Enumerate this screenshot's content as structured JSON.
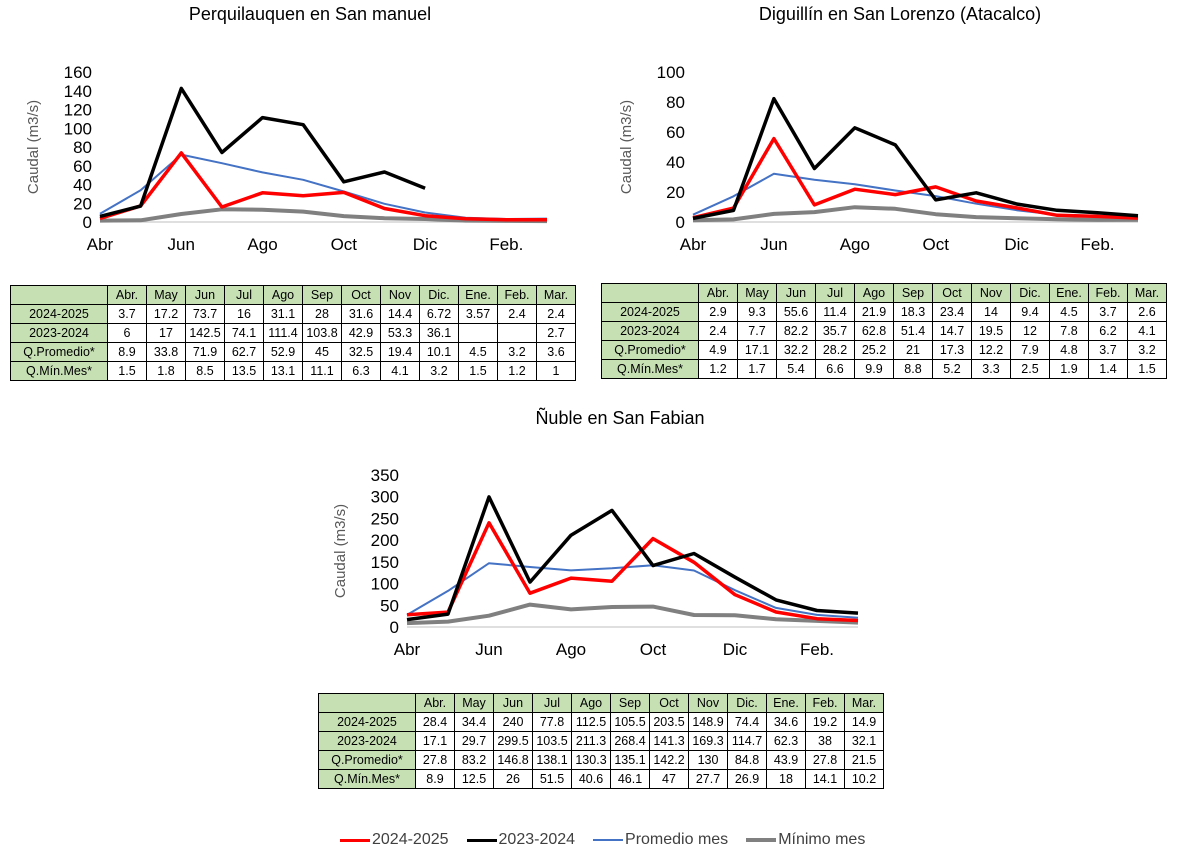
{
  "months_axis": [
    "Abr",
    "Jun",
    "Ago",
    "Oct",
    "Dic",
    "Feb."
  ],
  "table_months": [
    "Abr.",
    "May",
    "Jun",
    "Jul",
    "Ago",
    "Sep",
    "Oct",
    "Nov",
    "Dic.",
    "Ene.",
    "Feb.",
    "Mar."
  ],
  "legend": [
    {
      "label": "2024-2025",
      "color": "#ff0000"
    },
    {
      "label": "2023-2024",
      "color": "#000000"
    },
    {
      "label": "Promedio mes",
      "color": "#4472c4"
    },
    {
      "label": "Mínimo mes",
      "color": "#808080"
    }
  ],
  "chart_data": [
    {
      "type": "line",
      "title": "Perquilauquen en San manuel",
      "ylabel": "Caudal (m3/s)",
      "xlabel": "",
      "ylim": [
        0,
        160
      ],
      "yticks": [
        0,
        20,
        40,
        60,
        80,
        100,
        120,
        140,
        160
      ],
      "categories": [
        "Abr.",
        "May",
        "Jun",
        "Jul",
        "Ago",
        "Sep",
        "Oct",
        "Nov",
        "Dic.",
        "Ene.",
        "Feb.",
        "Mar."
      ],
      "series": [
        {
          "name": "2024-2025",
          "values": [
            3.7,
            17.2,
            73.7,
            16,
            31.1,
            28,
            31.6,
            14.4,
            6.72,
            3.57,
            2.4,
            2.4
          ]
        },
        {
          "name": "2023-2024",
          "values": [
            6,
            17,
            142.5,
            74.1,
            111.4,
            103.8,
            42.9,
            53.3,
            36.1,
            null,
            null,
            2.7
          ]
        },
        {
          "name": "Q.Promedio*",
          "values": [
            8.9,
            33.8,
            71.9,
            62.7,
            52.9,
            45,
            32.5,
            19.4,
            10.1,
            4.5,
            3.2,
            3.6
          ]
        },
        {
          "name": "Q.Mín.Mes*",
          "values": [
            1.5,
            1.8,
            8.5,
            13.5,
            13.1,
            11.1,
            6.3,
            4.1,
            3.2,
            1.5,
            1.2,
            1
          ]
        }
      ],
      "table_rows": [
        {
          "label": "2024-2025",
          "cells": [
            "3.7",
            "17.2",
            "73.7",
            "16",
            "31.1",
            "28",
            "31.6",
            "14.4",
            "6.72",
            "3.57",
            "2.4",
            "2.4"
          ]
        },
        {
          "label": "2023-2024",
          "cells": [
            "6",
            "17",
            "142.5",
            "74.1",
            "111.4",
            "103.8",
            "42.9",
            "53.3",
            "36.1",
            "",
            "",
            "2.7"
          ]
        },
        {
          "label": "Q.Promedio*",
          "cells": [
            "8.9",
            "33.8",
            "71.9",
            "62.7",
            "52.9",
            "45",
            "32.5",
            "19.4",
            "10.1",
            "4.5",
            "3.2",
            "3.6"
          ]
        },
        {
          "label": "Q.Mín.Mes*",
          "cells": [
            "1.5",
            "1.8",
            "8.5",
            "13.5",
            "13.1",
            "11.1",
            "6.3",
            "4.1",
            "3.2",
            "1.5",
            "1.2",
            "1"
          ]
        }
      ]
    },
    {
      "type": "line",
      "title": "Diguillín  en San Lorenzo (Atacalco)",
      "ylabel": "Caudal (m3/s)",
      "xlabel": "",
      "ylim": [
        0,
        100
      ],
      "yticks": [
        0,
        20,
        40,
        60,
        80,
        100
      ],
      "categories": [
        "Abr.",
        "May",
        "Jun",
        "Jul",
        "Ago",
        "Sep",
        "Oct",
        "Nov",
        "Dic.",
        "Ene.",
        "Feb.",
        "Mar."
      ],
      "series": [
        {
          "name": "2024-2025",
          "values": [
            2.9,
            9.3,
            55.6,
            11.4,
            21.9,
            18.3,
            23.4,
            14,
            9.4,
            4.5,
            3.7,
            2.6
          ]
        },
        {
          "name": "2023-2024",
          "values": [
            2.4,
            7.7,
            82.2,
            35.7,
            62.8,
            51.4,
            14.7,
            19.5,
            12,
            7.8,
            6.2,
            4.1
          ]
        },
        {
          "name": "Q.Promedio*",
          "values": [
            4.9,
            17.1,
            32.2,
            28.2,
            25.2,
            21,
            17.3,
            12.2,
            7.9,
            4.8,
            3.7,
            3.2
          ]
        },
        {
          "name": "Q.Mín.Mes*",
          "values": [
            1.2,
            1.7,
            5.4,
            6.6,
            9.9,
            8.8,
            5.2,
            3.3,
            2.5,
            1.9,
            1.4,
            1.5
          ]
        }
      ],
      "table_rows": [
        {
          "label": "2024-2025",
          "cells": [
            "2.9",
            "9.3",
            "55.6",
            "11.4",
            "21.9",
            "18.3",
            "23.4",
            "14",
            "9.4",
            "4.5",
            "3.7",
            "2.6"
          ]
        },
        {
          "label": "2023-2024",
          "cells": [
            "2.4",
            "7.7",
            "82.2",
            "35.7",
            "62.8",
            "51.4",
            "14.7",
            "19.5",
            "12",
            "7.8",
            "6.2",
            "4.1"
          ]
        },
        {
          "label": "Q.Promedio*",
          "cells": [
            "4.9",
            "17.1",
            "32.2",
            "28.2",
            "25.2",
            "21",
            "17.3",
            "12.2",
            "7.9",
            "4.8",
            "3.7",
            "3.2"
          ]
        },
        {
          "label": "Q.Mín.Mes*",
          "cells": [
            "1.2",
            "1.7",
            "5.4",
            "6.6",
            "9.9",
            "8.8",
            "5.2",
            "3.3",
            "2.5",
            "1.9",
            "1.4",
            "1.5"
          ]
        }
      ]
    },
    {
      "type": "line",
      "title": "Ñuble en San Fabian",
      "ylabel": "Caudal (m3/s)",
      "xlabel": "",
      "ylim": [
        0,
        350
      ],
      "yticks": [
        0,
        50,
        100,
        150,
        200,
        250,
        300,
        350
      ],
      "categories": [
        "Abr.",
        "May",
        "Jun",
        "Jul",
        "Ago",
        "Sep",
        "Oct",
        "Nov",
        "Dic.",
        "Ene.",
        "Feb.",
        "Mar."
      ],
      "series": [
        {
          "name": "2024-2025",
          "values": [
            28.4,
            34.4,
            240,
            77.8,
            112.5,
            105.5,
            203.5,
            148.9,
            74.4,
            34.6,
            19.2,
            14.9
          ]
        },
        {
          "name": "2023-2024",
          "values": [
            17.1,
            29.7,
            299.5,
            103.5,
            211.3,
            268.4,
            141.3,
            169.3,
            114.7,
            62.3,
            38,
            32.1
          ]
        },
        {
          "name": "Q.Promedio*",
          "values": [
            27.8,
            83.2,
            146.8,
            138.1,
            130.3,
            135.1,
            142.2,
            130,
            84.8,
            43.9,
            27.8,
            21.5
          ]
        },
        {
          "name": "Q.Mín.Mes*",
          "values": [
            8.9,
            12.5,
            26,
            51.5,
            40.6,
            46.1,
            47,
            27.7,
            26.9,
            18,
            14.1,
            10.2
          ]
        }
      ],
      "table_rows": [
        {
          "label": "2024-2025",
          "cells": [
            "28.4",
            "34.4",
            "240",
            "77.8",
            "112.5",
            "105.5",
            "203.5",
            "148.9",
            "74.4",
            "34.6",
            "19.2",
            "14.9"
          ]
        },
        {
          "label": "2023-2024",
          "cells": [
            "17.1",
            "29.7",
            "299.5",
            "103.5",
            "211.3",
            "268.4",
            "141.3",
            "169.3",
            "114.7",
            "62.3",
            "38",
            "32.1"
          ]
        },
        {
          "label": "Q.Promedio*",
          "cells": [
            "27.8",
            "83.2",
            "146.8",
            "138.1",
            "130.3",
            "135.1",
            "142.2",
            "130",
            "84.8",
            "43.9",
            "27.8",
            "21.5"
          ]
        },
        {
          "label": "Q.Mín.Mes*",
          "cells": [
            "8.9",
            "12.5",
            "26",
            "51.5",
            "40.6",
            "46.1",
            "47",
            "27.7",
            "26.9",
            "18",
            "14.1",
            "10.2"
          ]
        }
      ]
    }
  ]
}
